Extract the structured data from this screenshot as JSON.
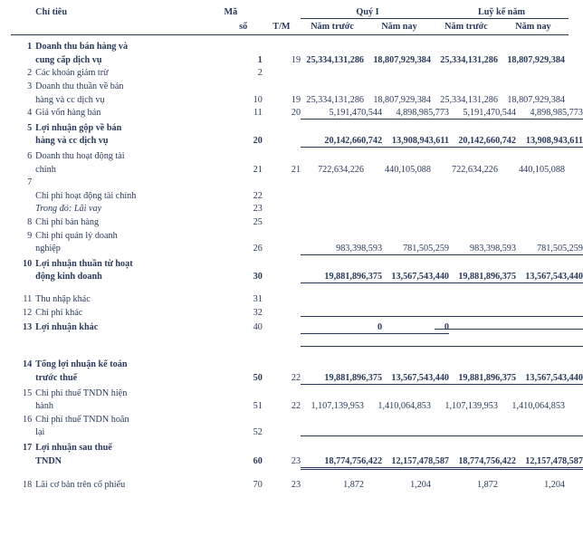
{
  "header": {
    "col_chitieu": "Chỉ tiêu",
    "col_maso_l1": "Mã",
    "col_maso_l2": "số",
    "col_tm": "T/M",
    "group_q1": "Quý I",
    "group_luyke": "Luỹ kế năm",
    "col_namtruoc": "Năm trước",
    "col_namnay": "Năm nay"
  },
  "rows": [
    {
      "idx": "1",
      "label_l1": "Doanh thu bán hàng và",
      "label_l2": "cung cấp dịch vụ",
      "bold": true,
      "maso": "1",
      "tm": "19",
      "q1_truoc": "25,334,131,286",
      "q1_nay": "18,807,929,384",
      "lk_truoc": "25,334,131,286",
      "lk_nay": "18,807,929,384",
      "underline": "none"
    },
    {
      "idx": "2",
      "label_l1": "Các khoản giảm trừ",
      "maso": "2",
      "underline": "none"
    },
    {
      "idx": "3",
      "label_l1": "Doanh thu thuần về bán",
      "label_l2": "hàng và cc dịch vụ",
      "maso": "10",
      "tm": "19",
      "q1_truoc": "25,334,131,286",
      "q1_nay": "18,807,929,384",
      "lk_truoc": "25,334,131,286",
      "lk_nay": "18,807,929,384",
      "underline": "none"
    },
    {
      "idx": "4",
      "label_l1": "Giá vốn hàng bán",
      "maso": "11",
      "tm": "20",
      "q1_truoc": "5,191,470,544",
      "q1_nay": "4,898,985,773",
      "lk_truoc": "5,191,470,544",
      "lk_nay": "4,898,985,773",
      "underline": "single"
    },
    {
      "idx": "5",
      "label_l1": "Lợi nhuận gộp về bán",
      "label_l2": "hàng và cc dịch vụ",
      "bold": true,
      "maso": "20",
      "q1_truoc": "20,142,660,742",
      "q1_nay": "13,908,943,611",
      "lk_truoc": "20,142,660,742",
      "lk_nay": "13,908,943,611",
      "underline": "thick"
    },
    {
      "idx": "6",
      "label_l1": "Doanh thu hoạt động tài",
      "label_l2": "chính",
      "maso": "21",
      "tm": "21",
      "q1_truoc": "722,634,226",
      "q1_nay": "440,105,088",
      "lk_truoc": "722,634,226",
      "lk_nay": "440,105,088",
      "underline": "none"
    },
    {
      "idx": "7",
      "label_l1": "",
      "underline": "none"
    },
    {
      "idx": "",
      "label_l1": "Chi phí hoạt động tài chính",
      "maso": "22",
      "underline": "none"
    },
    {
      "idx": "",
      "label_l1": "Trong đó: Lãi vay",
      "italic": true,
      "maso": "23",
      "underline": "none"
    },
    {
      "idx": "8",
      "label_l1": "Chi phí bán hàng",
      "maso": "25",
      "underline": "none"
    },
    {
      "idx": "9",
      "label_l1": "Chi phí quản lý doanh",
      "label_l2": "nghiệp",
      "maso": "26",
      "q1_truoc": "983,398,593",
      "q1_nay": "781,505,259",
      "lk_truoc": "983,398,593",
      "lk_nay": "781,505,259",
      "underline": "single"
    },
    {
      "idx": "10",
      "label_l1": "Lợi nhuận thuần từ hoạt",
      "label_l2": "động kinh doanh",
      "bold": true,
      "maso": "30",
      "q1_truoc": "19,881,896,375",
      "q1_nay": "13,567,543,440",
      "lk_truoc": "19,881,896,375",
      "lk_nay": "13,567,543,440",
      "underline": "thick"
    },
    {
      "spacer": true
    },
    {
      "idx": "11",
      "label_l1": "Thu nhập khác",
      "maso": "31",
      "underline": "none"
    },
    {
      "idx": "12",
      "label_l1": "Chi phí khác",
      "maso": "32",
      "underline": "empty"
    },
    {
      "idx": "13",
      "label_l1": "Lợi nhuận khác",
      "bold": true,
      "maso": "40",
      "q1_truoc": "0",
      "q1_nay": "0",
      "lk_truoc": "",
      "lk_nay": "",
      "underline": "thick"
    },
    {
      "underline": "empty",
      "blanknums": true
    },
    {
      "spacer": true
    },
    {
      "idx": "14",
      "label_l1": "Tổng lợi nhuận kế toán",
      "label_l2": "trước thuế",
      "bold": true,
      "maso": "50",
      "tm": "22",
      "q1_truoc": "19,881,896,375",
      "q1_nay": "13,567,543,440",
      "lk_truoc": "19,881,896,375",
      "lk_nay": "13,567,543,440",
      "underline": "thick"
    },
    {
      "idx": "15",
      "label_l1": "Chi phí thuế TNDN hiện",
      "label_l2": "hành",
      "maso": "51",
      "tm": "22",
      "q1_truoc": "1,107,139,953",
      "q1_nay": "1,410,064,853",
      "lk_truoc": "1,107,139,953",
      "lk_nay": "1,410,064,853",
      "underline": "none"
    },
    {
      "idx": "16",
      "label_l1": "Chi phí thuế TNDN hoãn",
      "label_l2": "lại",
      "maso": "52",
      "underline": "empty"
    },
    {
      "idx": "17",
      "label_l1": "Lợi nhuận sau thuế",
      "label_l2": "TNDN",
      "bold": true,
      "maso": "60",
      "tm": "23",
      "q1_truoc": "18,774,756,422",
      "q1_nay": "12,157,478,587",
      "lk_truoc": "18,774,756,422",
      "lk_nay": "12,157,478,587",
      "underline": "double"
    },
    {
      "spacer": true
    },
    {
      "idx": "18",
      "label_l1": "Lãi cơ bản trên cổ phiếu",
      "maso": "70",
      "tm": "23",
      "q1_truoc": "1,872",
      "q1_nay": "1,204",
      "lk_truoc": "1,872",
      "lk_nay": "1,204",
      "underline": "none"
    }
  ]
}
